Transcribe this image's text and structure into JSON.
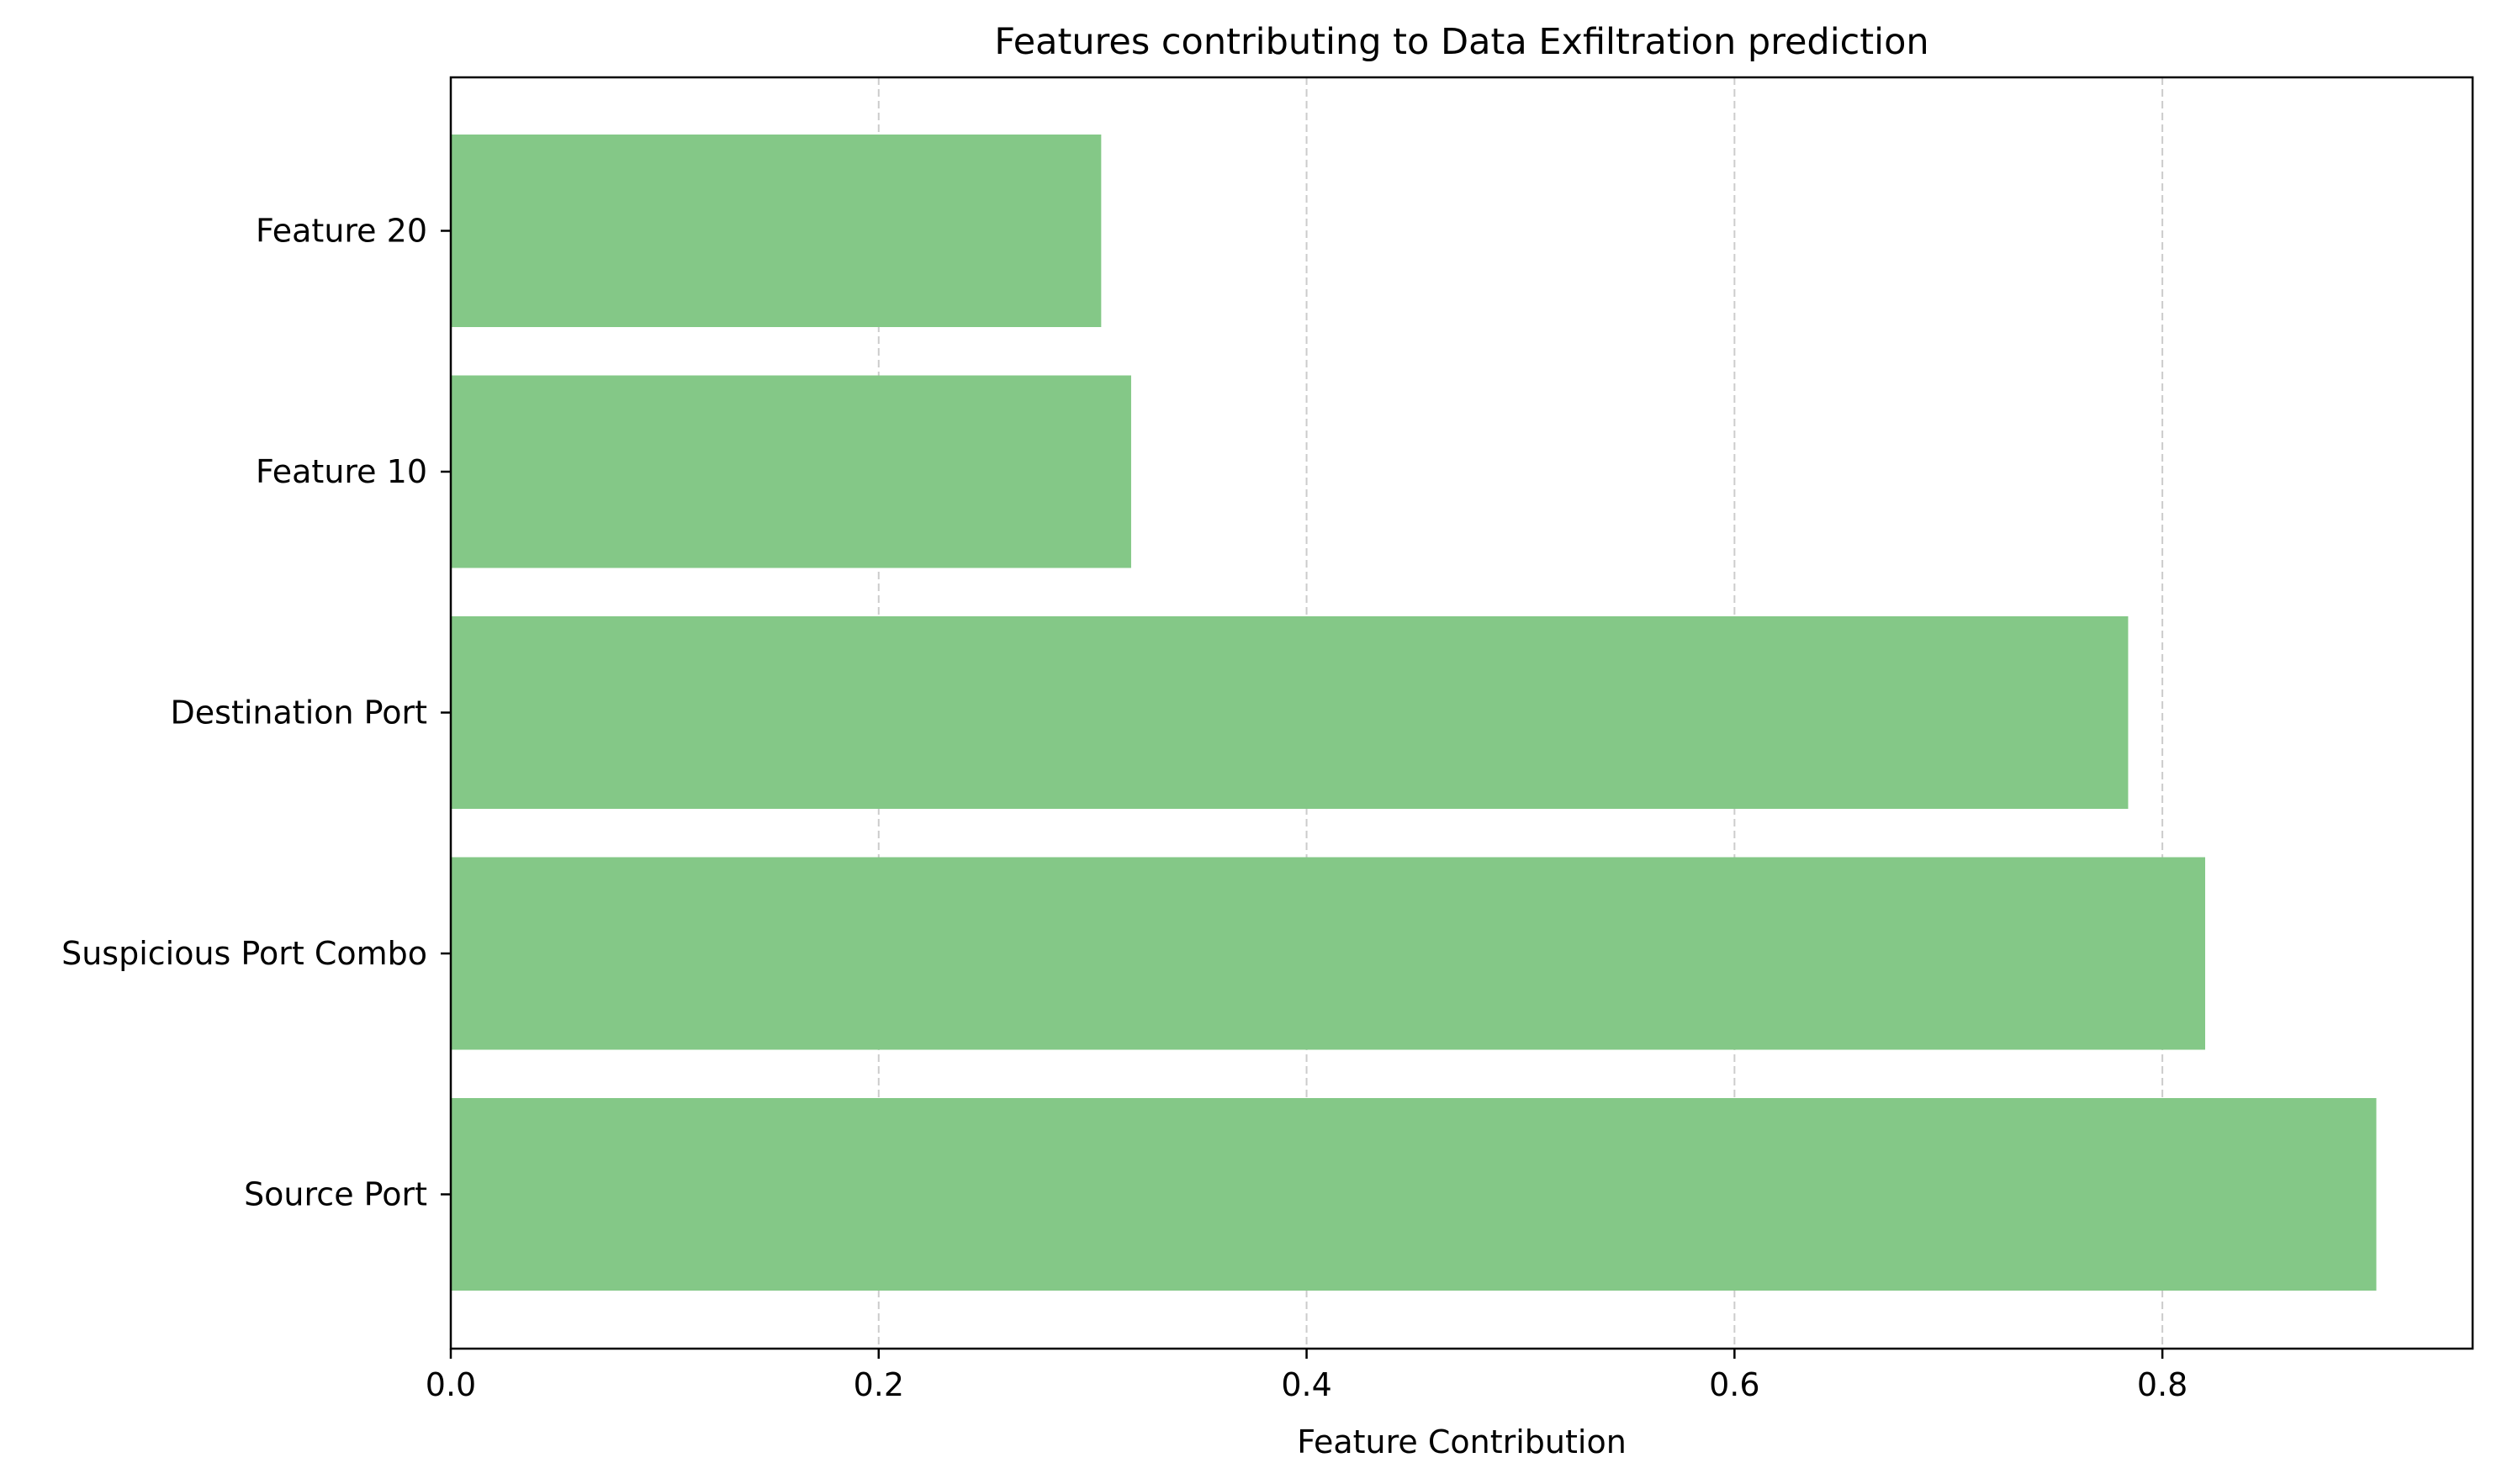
{
  "chart_data": {
    "type": "bar",
    "orientation": "horizontal",
    "title": "Features contributing to Data Exfiltration prediction",
    "xlabel": "Feature Contribution",
    "ylabel": "",
    "categories": [
      "Source Port",
      "Suspicious Port Combo",
      "Destination Port",
      "Feature 10",
      "Feature 20"
    ],
    "values": [
      0.9,
      0.82,
      0.784,
      0.318,
      0.304
    ],
    "xlim": [
      0,
      0.945
    ],
    "xticks": [
      0.0,
      0.2,
      0.4,
      0.6,
      0.8
    ],
    "xtick_labels": [
      "0.0",
      "0.2",
      "0.4",
      "0.6",
      "0.8"
    ],
    "grid": {
      "x": true,
      "y": false,
      "style": "dashed"
    },
    "colors": {
      "bar": "#84c887",
      "grid": "#cccccc",
      "axis": "#000000",
      "text": "#000000"
    }
  }
}
